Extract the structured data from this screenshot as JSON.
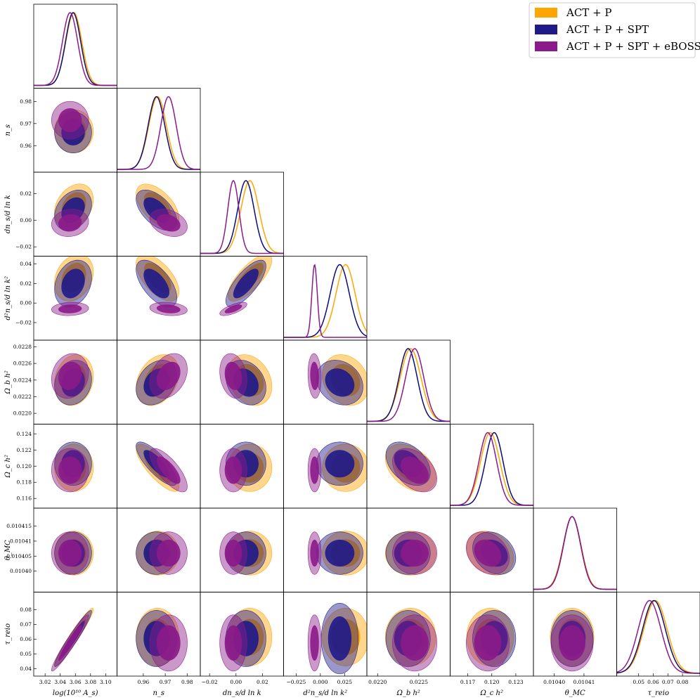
{
  "chart_data": {
    "type": "triangle",
    "title": "",
    "legend": {
      "position": "top-right",
      "entries": [
        {
          "label": "ACT + P",
          "color": "#ffa500"
        },
        {
          "label": "ACT + P + SPT",
          "color": "#1f1a8a"
        },
        {
          "label": "ACT + P + SPT + eBOSS",
          "color": "#8b1a8a"
        }
      ]
    },
    "parameters": [
      {
        "key": "logA",
        "label": "log(10¹⁰ A_s)",
        "range": [
          3.005,
          3.115
        ],
        "ticks": [
          "3.02",
          "3.04",
          "3.06",
          "3.08",
          "3.10"
        ],
        "tick_values": [
          3.02,
          3.04,
          3.06,
          3.08,
          3.1
        ]
      },
      {
        "key": "ns",
        "label": "n_s",
        "range": [
          0.948,
          0.986
        ],
        "ticks": [
          "0.96",
          "0.97",
          "0.98"
        ],
        "tick_values": [
          0.96,
          0.97,
          0.98
        ]
      },
      {
        "key": "run",
        "label": "dn_s/d ln k",
        "range": [
          -0.027,
          0.036
        ],
        "ticks": [
          "−0.02",
          "0.00",
          "0.02"
        ],
        "tick_values": [
          -0.02,
          0.0,
          0.02
        ],
        "yticks": [
          "−0.02",
          "0.00",
          "0.02"
        ]
      },
      {
        "key": "runrun",
        "label": "d²n_s/d ln k²",
        "range": [
          -0.038,
          0.048
        ],
        "ticks": [
          "−0.025",
          "0.000",
          "0.025"
        ],
        "tick_values": [
          -0.025,
          0.0,
          0.025
        ],
        "yticks": [
          "−0.02",
          "0.00",
          "0.02",
          "0.04"
        ],
        "ytick_values": [
          -0.02,
          0.0,
          0.02,
          0.04
        ]
      },
      {
        "key": "ombh2",
        "label": "Ω_b h²",
        "range": [
          0.02187,
          0.02288
        ],
        "ticks": [
          "0.0220",
          "0.0225"
        ],
        "tick_values": [
          0.022,
          0.0225
        ],
        "yticks": [
          "0.0220",
          "0.0222",
          "0.0224",
          "0.0226",
          "0.0228"
        ],
        "ytick_values": [
          0.022,
          0.0222,
          0.0224,
          0.0226,
          0.0228
        ]
      },
      {
        "key": "omch2",
        "label": "Ω_c h²",
        "range": [
          0.1148,
          0.1252
        ],
        "ticks": [
          "0.117",
          "0.120",
          "0.123"
        ],
        "tick_values": [
          0.117,
          0.12,
          0.123
        ],
        "yticks": [
          "0.116",
          "0.118",
          "0.120",
          "0.122",
          "0.124"
        ],
        "ytick_values": [
          0.116,
          0.118,
          0.12,
          0.122,
          0.124
        ]
      },
      {
        "key": "theta",
        "label": "θ_MC",
        "range": [
          0.010393,
          0.010421
        ],
        "ticks": [
          "0.01040",
          "0.01041"
        ],
        "tick_values": [
          0.0104,
          0.01041
        ],
        "yticks": [
          "0.01040",
          "0.010405",
          "0.01041",
          "0.010415"
        ],
        "ytick_values": [
          0.0104,
          0.010405,
          0.01041,
          0.010415
        ]
      },
      {
        "key": "tau",
        "label": "τ_reio",
        "range": [
          0.035,
          0.092
        ],
        "ticks": [
          "0.05",
          "0.06",
          "0.07",
          "0.08"
        ],
        "tick_values": [
          0.05,
          0.06,
          0.07,
          0.08
        ],
        "yticks": [
          "0.04",
          "0.05",
          "0.06",
          "0.07",
          "0.08"
        ],
        "ytick_values": [
          0.04,
          0.05,
          0.06,
          0.07,
          0.08
        ]
      }
    ],
    "series": [
      {
        "name": "ACT + P",
        "color": "#ffa500",
        "mean": [
          3.058,
          0.9665,
          0.0105,
          0.026,
          0.0224,
          0.1198,
          0.010406,
          0.0615
        ],
        "sigma": [
          0.0105,
          0.004,
          0.0068,
          0.0098,
          0.000125,
          0.0012,
          3e-06,
          0.008
        ],
        "rho": {
          "logA-tau": 0.96,
          "logA-run": 0.3,
          "logA-runrun": 0.25,
          "ns-run": -0.55,
          "ns-runrun": -0.6,
          "ns-omch2": -0.8,
          "run-runrun": 0.75,
          "ombh2-omch2": -0.4,
          "ns-ombh2": 0.3,
          "omch2-theta": -0.25,
          "run-ombh2": -0.25,
          "runrun-ombh2": -0.2,
          "logA-ombh2": 0.15
        }
      },
      {
        "name": "ACT + P + SPT",
        "color": "#1f1a8a",
        "mean": [
          3.057,
          0.966,
          0.0075,
          0.02,
          0.02237,
          0.1203,
          0.010406,
          0.0605
        ],
        "sigma": [
          0.01,
          0.0038,
          0.0062,
          0.0098,
          0.00011,
          0.0011,
          2.9e-06,
          0.0078
        ],
        "rho": {
          "logA-tau": 0.96,
          "logA-run": 0.3,
          "logA-runrun": 0.25,
          "ns-run": -0.55,
          "ns-runrun": -0.6,
          "ns-omch2": -0.8,
          "run-runrun": 0.75,
          "ombh2-omch2": -0.4,
          "ns-ombh2": 0.3,
          "omch2-theta": -0.25,
          "run-ombh2": -0.25,
          "runrun-ombh2": -0.2,
          "logA-ombh2": 0.15
        }
      },
      {
        "name": "ACT + P + SPT + eBOSS",
        "color": "#8b1a8a",
        "mean": [
          3.053,
          0.9715,
          -0.002,
          -0.006,
          0.02245,
          0.1195,
          0.010406,
          0.0575
        ],
        "sigma": [
          0.01,
          0.0035,
          0.0042,
          0.0028,
          0.00011,
          0.0011,
          2.9e-06,
          0.0078
        ],
        "rho": {
          "logA-tau": 0.96,
          "logA-run": 0.1,
          "logA-runrun": 0.1,
          "ns-run": -0.3,
          "ns-runrun": -0.2,
          "ns-omch2": -0.75,
          "run-runrun": 0.7,
          "ombh2-omch2": -0.4,
          "ns-ombh2": 0.3,
          "omch2-theta": -0.25,
          "run-ombh2": -0.2,
          "runrun-ombh2": -0.1,
          "logA-ombh2": 0.15
        }
      }
    ],
    "grid": false
  }
}
